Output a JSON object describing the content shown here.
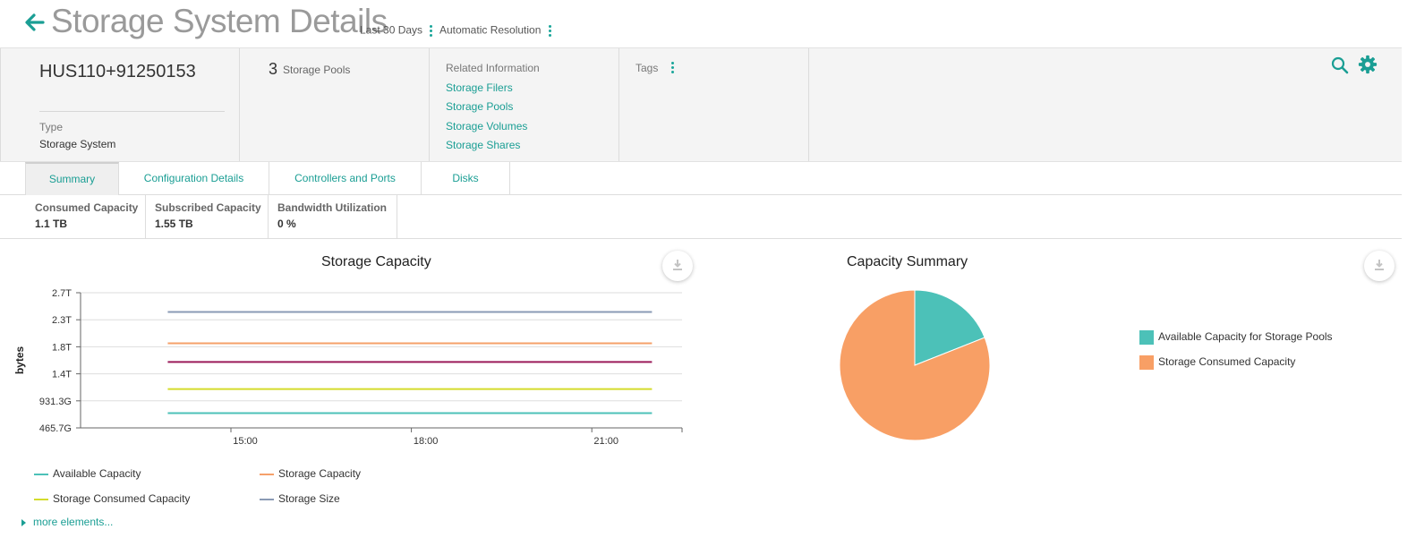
{
  "header": {
    "title": "Storage System Details",
    "time_range": "Last 30 Days",
    "resolution": "Automatic Resolution"
  },
  "system": {
    "name": "HUS110+91250153",
    "type_label": "Type",
    "type_value": "Storage System"
  },
  "pools": {
    "count": "3",
    "label": "Storage Pools"
  },
  "related": {
    "title": "Related Information",
    "links": [
      "Storage Filers",
      "Storage Pools",
      "Storage Volumes",
      "Storage Shares"
    ]
  },
  "tags": {
    "label": "Tags"
  },
  "tabs": [
    {
      "label": "Summary"
    },
    {
      "label": "Configuration Details"
    },
    {
      "label": "Controllers and Ports"
    },
    {
      "label": "Disks"
    }
  ],
  "metrics": [
    {
      "label": "Consumed Capacity",
      "value": "1.1 TB"
    },
    {
      "label": "Subscribed Capacity",
      "value": "1.55 TB"
    },
    {
      "label": "Bandwidth Utilization",
      "value": "0 %"
    }
  ],
  "colors": {
    "accent": "#1a9e94",
    "available": "#4cc1b8",
    "storage_capacity": "#f5a06a",
    "consumed": "#d4dc2c",
    "size": "#8a9ab5",
    "unnamed": "#9b1b5a",
    "pie_available": "#4cc1b8",
    "pie_consumed": "#f89f65"
  },
  "more_elements": "more elements...",
  "chart_data": [
    {
      "type": "line",
      "title": "Storage Capacity",
      "ylabel": "bytes",
      "xlabel": "",
      "y_ticks": [
        "2.7T",
        "2.3T",
        "1.8T",
        "1.4T",
        "931.3G",
        "465.7G"
      ],
      "x_ticks": [
        "15:00",
        "18:00",
        "21:00"
      ],
      "ylim_tb": [
        0.4547,
        2.7
      ],
      "x_range_hours": [
        12.5,
        22.5
      ],
      "series": [
        {
          "name": "Storage Size",
          "color_key": "size",
          "x": [
            13.95,
            22.0
          ],
          "y": [
            2.38,
            2.38
          ]
        },
        {
          "name": "Storage Capacity",
          "color_key": "storage_capacity",
          "x": [
            13.95,
            22.0
          ],
          "y": [
            1.86,
            1.86
          ]
        },
        {
          "color_key": "unnamed",
          "x": [
            13.95,
            22.0
          ],
          "y": [
            1.55,
            1.55
          ]
        },
        {
          "name": "Storage Consumed Capacity",
          "color_key": "consumed",
          "x": [
            13.95,
            22.0
          ],
          "y": [
            1.1,
            1.1
          ]
        },
        {
          "name": "Available Capacity",
          "color_key": "available",
          "x": [
            13.95,
            22.0
          ],
          "y": [
            0.7,
            0.7
          ]
        }
      ],
      "legend": [
        "Available Capacity",
        "Storage Capacity",
        "Storage Consumed Capacity",
        "Storage Size"
      ],
      "grid": true,
      "legend_position": "bottom"
    },
    {
      "type": "pie",
      "title": "Capacity Summary",
      "slices": [
        {
          "name": "Available Capacity for Storage Pools",
          "value": 19,
          "color_key": "pie_available"
        },
        {
          "name": "Storage Consumed Capacity",
          "value": 81,
          "color_key": "pie_consumed"
        }
      ],
      "legend_position": "right"
    }
  ]
}
